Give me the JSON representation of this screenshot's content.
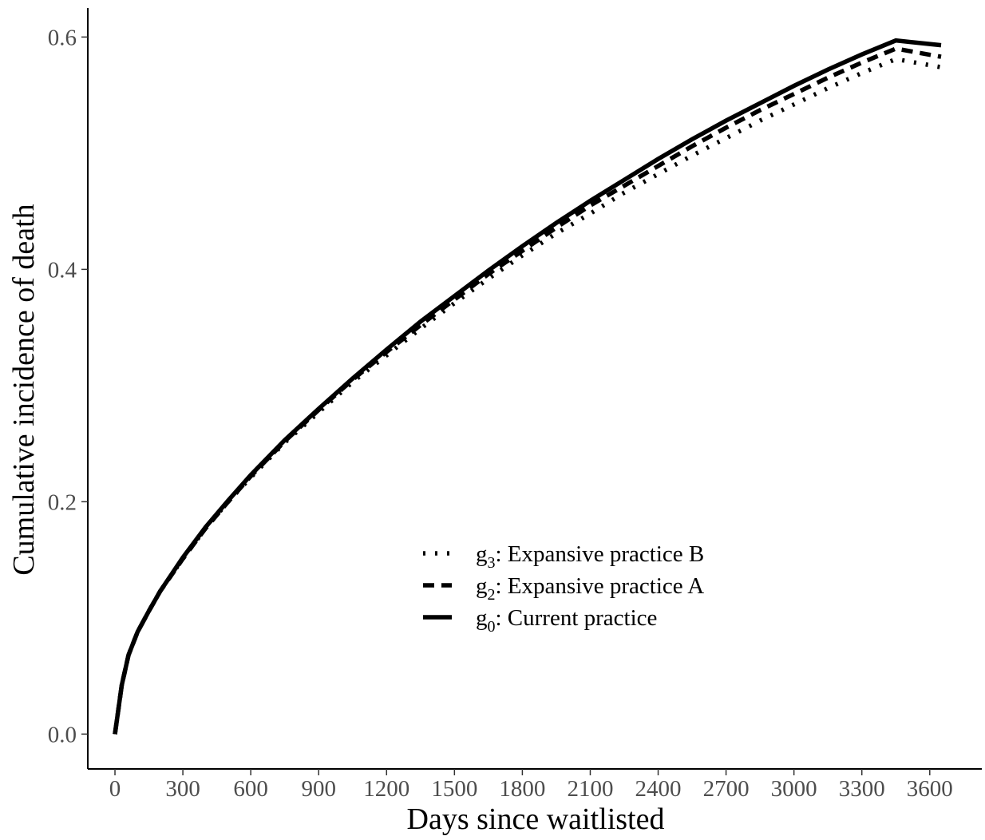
{
  "chart_data": {
    "type": "line",
    "xlabel": "Days since waitlisted",
    "ylabel": "Cumulative incidence of death",
    "xlim": [
      -120,
      3830
    ],
    "ylim": [
      -0.03,
      0.625
    ],
    "x_ticks": [
      0,
      300,
      600,
      900,
      1200,
      1500,
      1800,
      2100,
      2400,
      2700,
      3000,
      3300,
      3600
    ],
    "x_tick_labels": [
      "0",
      "300",
      "600",
      "900",
      "1200",
      "1500",
      "1800",
      "2100",
      "2400",
      "2700",
      "3000",
      "3300",
      "3600"
    ],
    "y_ticks": [
      0.0,
      0.2,
      0.4,
      0.6
    ],
    "y_tick_labels": [
      "0.0",
      "0.2",
      "0.4",
      "0.6"
    ],
    "grid": false,
    "legend_position": "center",
    "x": [
      0,
      30,
      60,
      100,
      150,
      200,
      300,
      400,
      500,
      600,
      750,
      900,
      1050,
      1200,
      1350,
      1500,
      1650,
      1800,
      1950,
      2100,
      2250,
      2400,
      2550,
      2700,
      2850,
      3000,
      3150,
      3300,
      3450,
      3650
    ],
    "series": [
      {
        "legend_main": "g",
        "legend_sub": "3",
        "legend_rest": ": Expansive practice B",
        "style": "dotted",
        "values": [
          0.0,
          0.042,
          0.068,
          0.088,
          0.106,
          0.123,
          0.151,
          0.177,
          0.2,
          0.221,
          0.251,
          0.277,
          0.303,
          0.326,
          0.349,
          0.371,
          0.392,
          0.412,
          0.431,
          0.448,
          0.466,
          0.482,
          0.498,
          0.513,
          0.528,
          0.542,
          0.556,
          0.569,
          0.581,
          0.574
        ]
      },
      {
        "legend_main": "g",
        "legend_sub": "2",
        "legend_rest": ": Expansive practice A",
        "style": "dashed",
        "values": [
          0.0,
          0.042,
          0.068,
          0.088,
          0.106,
          0.123,
          0.151,
          0.177,
          0.2,
          0.222,
          0.252,
          0.279,
          0.305,
          0.329,
          0.352,
          0.374,
          0.396,
          0.416,
          0.436,
          0.455,
          0.472,
          0.489,
          0.506,
          0.522,
          0.537,
          0.551,
          0.565,
          0.578,
          0.59,
          0.583
        ]
      },
      {
        "legend_main": "g",
        "legend_sub": "0",
        "legend_rest": ": Current practice",
        "style": "solid",
        "values": [
          0.0,
          0.042,
          0.068,
          0.088,
          0.106,
          0.123,
          0.152,
          0.178,
          0.201,
          0.223,
          0.253,
          0.28,
          0.306,
          0.331,
          0.355,
          0.377,
          0.399,
          0.42,
          0.44,
          0.459,
          0.477,
          0.495,
          0.512,
          0.528,
          0.543,
          0.558,
          0.572,
          0.585,
          0.597,
          0.593
        ]
      }
    ],
    "colors": {
      "line": "#000000",
      "tick_label": "#4d4d4d"
    }
  }
}
